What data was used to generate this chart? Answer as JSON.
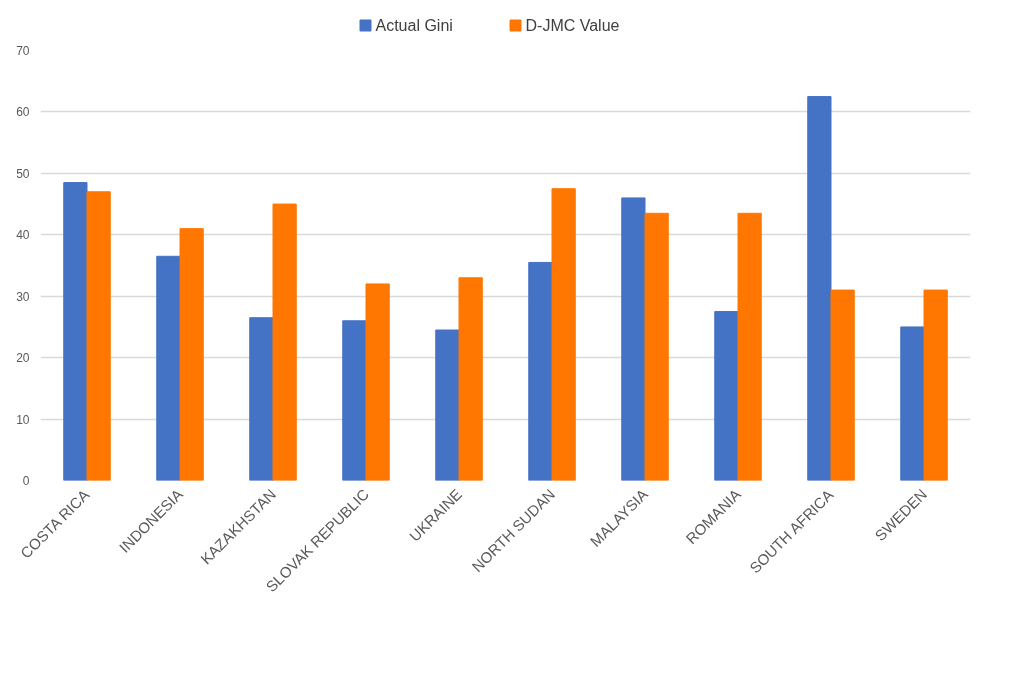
{
  "chart_data": {
    "type": "bar",
    "categories": [
      "COSTA RICA",
      "INDONESIA",
      "KAZAKHSTAN",
      "SLOVAK REPUBLIC",
      "UKRAINE",
      "NORTH SUDAN",
      "MALAYSIA",
      "ROMANIA",
      "SOUTH AFRICA",
      "SWEDEN"
    ],
    "series": [
      {
        "name": "Actual Gini",
        "color": "#4472c4",
        "values": [
          48.5,
          36.5,
          26.5,
          26,
          24.5,
          35.5,
          46,
          27.5,
          62.5,
          25
        ]
      },
      {
        "name": "D-JMC Value",
        "color": "#ff7700",
        "values": [
          47,
          41,
          45,
          32,
          33,
          47.5,
          43.5,
          43.5,
          31,
          31
        ]
      }
    ],
    "ylim": [
      0,
      70
    ],
    "yticks": [
      0,
      10,
      20,
      30,
      40,
      50,
      60,
      70
    ],
    "grid": "y",
    "legend": "top"
  }
}
